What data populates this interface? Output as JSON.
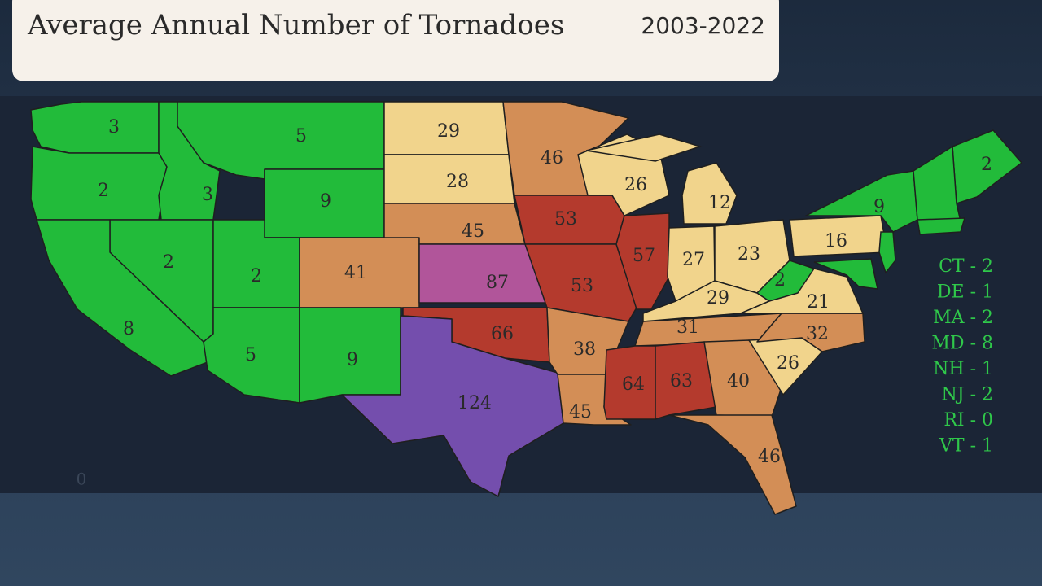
{
  "header": {
    "title": "Average Annual Number of Tornadoes",
    "period": "2003-2022"
  },
  "map": {
    "regions": [
      {
        "value": 3,
        "color": "#22bb3a"
      },
      {
        "value": 2,
        "color": "#22bb3a"
      },
      {
        "value": 3,
        "color": "#22bb3a"
      },
      {
        "value": 5,
        "color": "#22bb3a"
      },
      {
        "value": 9,
        "color": "#22bb3a"
      },
      {
        "value": 2,
        "color": "#22bb3a"
      },
      {
        "value": 8,
        "color": "#22bb3a"
      },
      {
        "value": 2,
        "color": "#22bb3a"
      },
      {
        "value": 41,
        "color": "#d38e56"
      },
      {
        "value": 5,
        "color": "#22bb3a"
      },
      {
        "value": 9,
        "color": "#22bb3a"
      },
      {
        "value": 29,
        "color": "#f1d48c"
      },
      {
        "value": 28,
        "color": "#f1d48c"
      },
      {
        "value": 45,
        "color": "#d38e56"
      },
      {
        "value": 87,
        "color": "#b1559a"
      },
      {
        "value": 66,
        "color": "#b43a2d"
      },
      {
        "value": 124,
        "color": "#744ead"
      },
      {
        "value": 46,
        "color": "#d38e56"
      },
      {
        "value": 53,
        "color": "#b43a2d"
      },
      {
        "value": 53,
        "color": "#b43a2d"
      },
      {
        "value": 38,
        "color": "#d38e56"
      },
      {
        "value": 45,
        "color": "#d38e56"
      },
      {
        "value": 26,
        "color": "#f1d48c"
      },
      {
        "value": 57,
        "color": "#b43a2d"
      },
      {
        "value": 12,
        "color": "#f1d48c"
      },
      {
        "value": 27,
        "color": "#f1d48c"
      },
      {
        "value": 23,
        "color": "#f1d48c"
      },
      {
        "value": 29,
        "color": "#f1d48c"
      },
      {
        "value": 31,
        "color": "#d38e56"
      },
      {
        "value": 64,
        "color": "#b43a2d"
      },
      {
        "value": 63,
        "color": "#b43a2d"
      },
      {
        "value": 40,
        "color": "#d38e56"
      },
      {
        "value": 46,
        "color": "#d38e56"
      },
      {
        "value": 26,
        "color": "#f1d48c"
      },
      {
        "value": 32,
        "color": "#d38e56"
      },
      {
        "value": 21,
        "color": "#f1d48c"
      },
      {
        "value": 2,
        "color": "#22bb3a"
      },
      {
        "value": 16,
        "color": "#f1d48c"
      },
      {
        "value": 9,
        "color": "#22bb3a"
      },
      {
        "value": 2,
        "color": "#22bb3a"
      }
    ],
    "small_states": [
      "CT - 2",
      "DE - 1",
      "MA - 2",
      "MD - 8",
      "NH - 1",
      "NJ - 2",
      "RI - 0",
      "VT - 1"
    ],
    "corner_label": 0
  }
}
